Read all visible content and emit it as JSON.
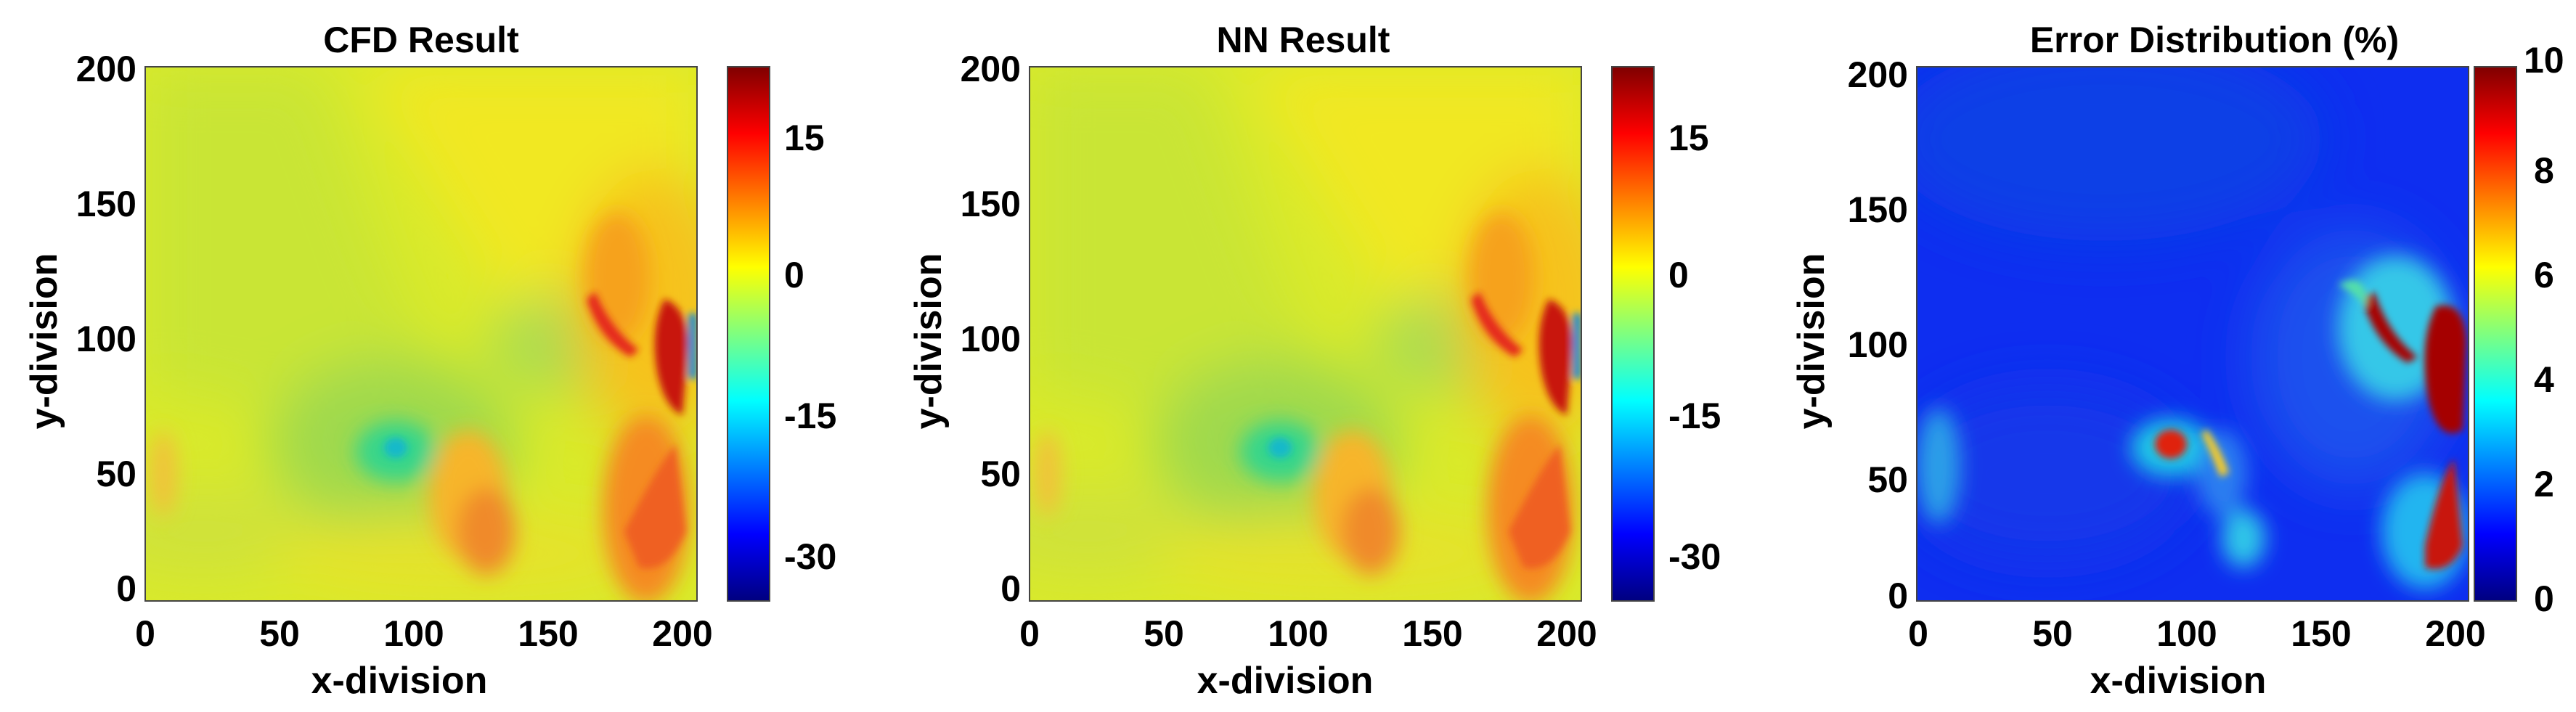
{
  "colors": {
    "jet": [
      "#00007f",
      "#0000ff",
      "#007fff",
      "#00ffff",
      "#7fff7f",
      "#ffff00",
      "#ff7f00",
      "#ff0000",
      "#7f0000"
    ]
  },
  "chart_data": [
    {
      "type": "heatmap",
      "title": "CFD Result",
      "xlabel": "x-division",
      "ylabel": "y-division",
      "xlim": [
        0,
        205
      ],
      "ylim": [
        0,
        200
      ],
      "x_ticks": [
        "0",
        "50",
        "100",
        "150",
        "200"
      ],
      "y_ticks": [
        "0",
        "50",
        "100",
        "150",
        "200"
      ],
      "colorbar": {
        "range": [
          -37,
          22
        ],
        "ticks": [
          "15",
          "0",
          "-15",
          "-30"
        ]
      },
      "background_value": 1,
      "features": [
        {
          "name": "yellow region (top right)",
          "x": 175,
          "y": 160,
          "value": 4
        },
        {
          "name": "green wedge (upper left)",
          "x": 30,
          "y": 150,
          "value": -1.5
        },
        {
          "name": "green region (lower left)",
          "x": 90,
          "y": 60,
          "value": -6
        },
        {
          "name": "cyan spot",
          "x": 97,
          "y": 57,
          "value": -13
        },
        {
          "name": "green pocket",
          "x": 158,
          "y": 100,
          "value": -7
        },
        {
          "name": "orange region (x~115)",
          "x": 120,
          "y": 55,
          "value": 9
        },
        {
          "name": "red streak (x~175)",
          "x": 174,
          "y": 108,
          "value": 16
        },
        {
          "name": "red core (x~200)",
          "x": 198,
          "y": 92,
          "value": 19
        },
        {
          "name": "orange plume (bottom right)",
          "x": 195,
          "y": 35,
          "value": 10
        },
        {
          "name": "blue edge spot",
          "x": 205,
          "y": 95,
          "value": -18
        }
      ]
    },
    {
      "type": "heatmap",
      "title": "NN Result",
      "xlabel": "x-division",
      "ylabel": "y-division",
      "xlim": [
        0,
        205
      ],
      "ylim": [
        0,
        200
      ],
      "x_ticks": [
        "0",
        "50",
        "100",
        "150",
        "200"
      ],
      "y_ticks": [
        "0",
        "50",
        "100",
        "150",
        "200"
      ],
      "colorbar": {
        "range": [
          -37,
          22
        ],
        "ticks": [
          "15",
          "0",
          "-15",
          "-30"
        ]
      },
      "background_value": 1,
      "features": [
        {
          "name": "yellow region (top right)",
          "x": 175,
          "y": 160,
          "value": 4
        },
        {
          "name": "green wedge (upper left)",
          "x": 30,
          "y": 150,
          "value": -1.5
        },
        {
          "name": "green region (lower left)",
          "x": 90,
          "y": 60,
          "value": -6
        },
        {
          "name": "cyan spot",
          "x": 97,
          "y": 57,
          "value": -13
        },
        {
          "name": "green pocket",
          "x": 158,
          "y": 100,
          "value": -7
        },
        {
          "name": "orange region (x~115)",
          "x": 120,
          "y": 55,
          "value": 9
        },
        {
          "name": "red streak (x~175)",
          "x": 174,
          "y": 108,
          "value": 16
        },
        {
          "name": "red core (x~200)",
          "x": 198,
          "y": 92,
          "value": 19
        },
        {
          "name": "orange plume (bottom right)",
          "x": 195,
          "y": 35,
          "value": 10
        },
        {
          "name": "blue edge spot",
          "x": 205,
          "y": 95,
          "value": -18
        }
      ]
    },
    {
      "type": "heatmap",
      "title": "Error Distribution (%)",
      "xlabel": "x-division",
      "ylabel": "y-division",
      "xlim": [
        0,
        205
      ],
      "ylim": [
        0,
        200
      ],
      "x_ticks": [
        "0",
        "50",
        "100",
        "150",
        "200"
      ],
      "y_ticks": [
        "0",
        "50",
        "100",
        "150",
        "200"
      ],
      "colorbar": {
        "range": [
          0,
          10
        ],
        "ticks": [
          "10",
          "8",
          "6",
          "4",
          "2",
          "0"
        ]
      },
      "background_value": 0.5,
      "features": [
        {
          "name": "error hotspot (x~90)",
          "x": 92,
          "y": 62,
          "value": 9
        },
        {
          "name": "error streak (x~110)",
          "x": 110,
          "y": 60,
          "value": 6
        },
        {
          "name": "error streak (x~175)",
          "x": 173,
          "y": 110,
          "value": 10
        },
        {
          "name": "error core (x~195)",
          "x": 195,
          "y": 95,
          "value": 10
        },
        {
          "name": "error plume (bottom right)",
          "x": 193,
          "y": 40,
          "value": 10
        },
        {
          "name": "left edge error",
          "x": 3,
          "y": 55,
          "value": 5
        }
      ]
    }
  ]
}
